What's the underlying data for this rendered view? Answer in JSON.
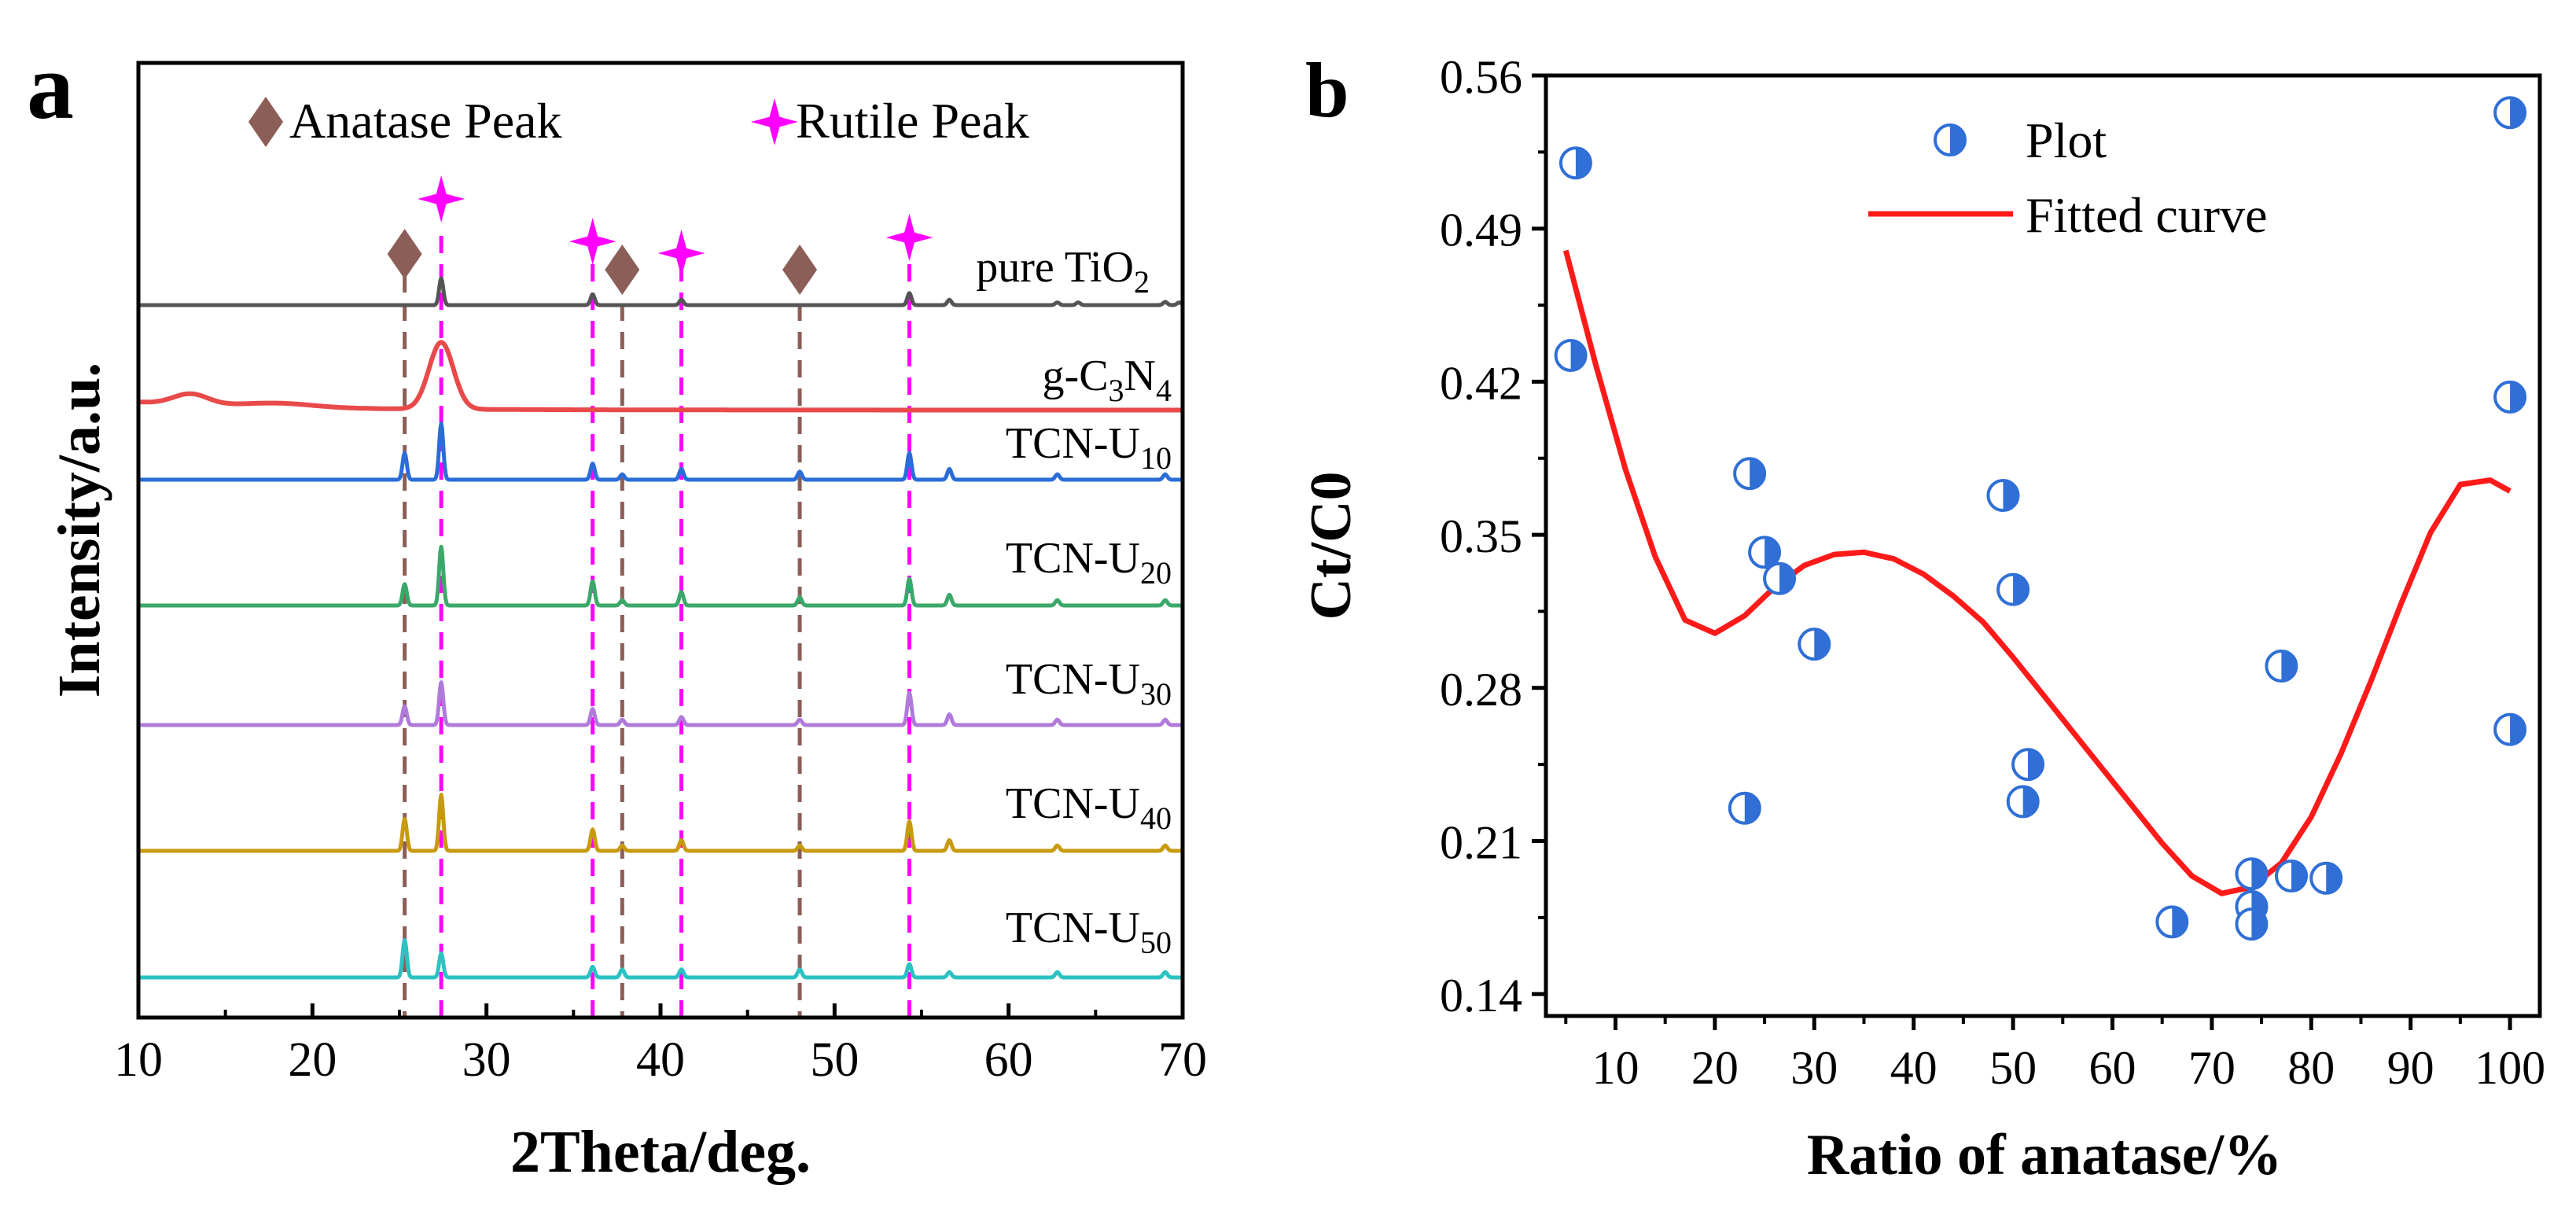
{
  "panel_a": {
    "label": "a",
    "legend": {
      "anatase": "Anatase Peak",
      "rutile": "Rutile Peak"
    },
    "colors": {
      "anatase_marker": "#8B5E57",
      "rutile_marker": "#FF00FF"
    },
    "samples": [
      {
        "prefix": "pure TiO",
        "sub": "2",
        "suffix": "",
        "color": "#555555"
      },
      {
        "prefix": "g-C",
        "sub": "3",
        "suffix": "N",
        "sub2": "4",
        "color": "#E84A4A"
      },
      {
        "prefix": "TCN-U",
        "sub": "10",
        "suffix": "",
        "color": "#2A6DD8"
      },
      {
        "prefix": "TCN-U",
        "sub": "20",
        "suffix": "",
        "color": "#3BA86A"
      },
      {
        "prefix": "TCN-U",
        "sub": "30",
        "suffix": "",
        "color": "#B07ADB"
      },
      {
        "prefix": "TCN-U",
        "sub": "40",
        "suffix": "",
        "color": "#C89A10"
      },
      {
        "prefix": "TCN-U",
        "sub": "50",
        "suffix": "",
        "color": "#2CC2C2"
      }
    ]
  },
  "panel_b": {
    "label": "b",
    "legend": {
      "plot": "Plot",
      "fit": "Fitted curve"
    },
    "colors": {
      "point": "#2F6FD6",
      "fit": "#FF1A1A"
    }
  },
  "chart_data": [
    {
      "type": "line",
      "title": "",
      "xlabel": "2Theta/deg.",
      "ylabel": "Intensity/a.u.",
      "xlim": [
        10,
        70
      ],
      "xticks": [
        10,
        20,
        30,
        40,
        50,
        60,
        70
      ],
      "anatase_peaks": [
        25.3,
        37.8,
        48.0
      ],
      "rutile_peaks": [
        27.4,
        36.1,
        41.2,
        54.3
      ],
      "series": [
        {
          "name": "pure TiO2",
          "peaks": [
            [
              27.4,
              1.0
            ],
            [
              36.1,
              0.4
            ],
            [
              41.2,
              0.2
            ],
            [
              54.3,
              0.45
            ],
            [
              56.6,
              0.2
            ],
            [
              62.8,
              0.1
            ],
            [
              64.0,
              0.1
            ],
            [
              69.0,
              0.12
            ],
            [
              69.8,
              0.1
            ]
          ]
        },
        {
          "name": "g-C3N4",
          "peaks": [
            [
              13.0,
              0.4
            ],
            [
              27.4,
              2.5
            ]
          ]
        },
        {
          "name": "TCN-U10",
          "peaks": [
            [
              25.3,
              1.0
            ],
            [
              27.4,
              2.1
            ],
            [
              36.1,
              0.6
            ],
            [
              37.8,
              0.2
            ],
            [
              41.2,
              0.4
            ],
            [
              48.0,
              0.3
            ],
            [
              54.3,
              1.0
            ],
            [
              56.6,
              0.4
            ],
            [
              62.8,
              0.2
            ],
            [
              69.0,
              0.2
            ]
          ]
        },
        {
          "name": "TCN-U20",
          "peaks": [
            [
              25.3,
              0.8
            ],
            [
              27.4,
              2.2
            ],
            [
              36.1,
              0.9
            ],
            [
              37.8,
              0.2
            ],
            [
              41.2,
              0.5
            ],
            [
              48.0,
              0.3
            ],
            [
              54.3,
              1.0
            ],
            [
              56.6,
              0.4
            ],
            [
              62.8,
              0.2
            ],
            [
              69.0,
              0.2
            ]
          ]
        },
        {
          "name": "TCN-U30",
          "peaks": [
            [
              25.3,
              0.7
            ],
            [
              27.4,
              1.6
            ],
            [
              36.1,
              0.6
            ],
            [
              37.8,
              0.2
            ],
            [
              41.2,
              0.3
            ],
            [
              48.0,
              0.2
            ],
            [
              54.3,
              1.2
            ],
            [
              56.6,
              0.4
            ],
            [
              62.8,
              0.2
            ],
            [
              69.0,
              0.2
            ]
          ]
        },
        {
          "name": "TCN-U40",
          "peaks": [
            [
              25.3,
              1.2
            ],
            [
              27.4,
              2.1
            ],
            [
              36.1,
              0.8
            ],
            [
              37.8,
              0.2
            ],
            [
              41.2,
              0.4
            ],
            [
              48.0,
              0.2
            ],
            [
              54.3,
              1.1
            ],
            [
              56.6,
              0.4
            ],
            [
              62.8,
              0.2
            ],
            [
              69.0,
              0.2
            ]
          ]
        },
        {
          "name": "TCN-U50",
          "peaks": [
            [
              25.3,
              1.4
            ],
            [
              27.4,
              0.9
            ],
            [
              36.1,
              0.4
            ],
            [
              37.8,
              0.3
            ],
            [
              41.2,
              0.3
            ],
            [
              48.0,
              0.3
            ],
            [
              54.3,
              0.5
            ],
            [
              56.6,
              0.2
            ],
            [
              62.8,
              0.2
            ],
            [
              69.0,
              0.2
            ]
          ]
        }
      ]
    },
    {
      "type": "scatter",
      "title": "",
      "xlabel": "Ratio of anatase/%",
      "ylabel": "Ct/C0",
      "xlim": [
        3,
        103
      ],
      "ylim": [
        0.13,
        0.56
      ],
      "xticks": [
        10,
        20,
        30,
        40,
        50,
        60,
        70,
        80,
        90,
        100
      ],
      "yticks": [
        0.14,
        0.21,
        0.28,
        0.35,
        0.42,
        0.49,
        0.56
      ],
      "points": [
        {
          "x": 6.0,
          "y": 0.52
        },
        {
          "x": 5.5,
          "y": 0.432
        },
        {
          "x": 23.5,
          "y": 0.378
        },
        {
          "x": 25.0,
          "y": 0.342
        },
        {
          "x": 26.5,
          "y": 0.33
        },
        {
          "x": 30.0,
          "y": 0.3
        },
        {
          "x": 23.0,
          "y": 0.225
        },
        {
          "x": 49.0,
          "y": 0.368
        },
        {
          "x": 50.0,
          "y": 0.325
        },
        {
          "x": 51.5,
          "y": 0.245
        },
        {
          "x": 51.0,
          "y": 0.228
        },
        {
          "x": 66.0,
          "y": 0.173
        },
        {
          "x": 74.0,
          "y": 0.195
        },
        {
          "x": 74.0,
          "y": 0.18
        },
        {
          "x": 74.0,
          "y": 0.172
        },
        {
          "x": 77.0,
          "y": 0.29
        },
        {
          "x": 78.0,
          "y": 0.194
        },
        {
          "x": 81.5,
          "y": 0.193
        },
        {
          "x": 100.0,
          "y": 0.543
        },
        {
          "x": 100.0,
          "y": 0.413
        },
        {
          "x": 100.0,
          "y": 0.261
        }
      ],
      "fit_curve": {
        "x": [
          5,
          8,
          11,
          14,
          17,
          20,
          23,
          26,
          29,
          32,
          35,
          38,
          41,
          44,
          47,
          50,
          53,
          56,
          59,
          62,
          65,
          68,
          71,
          74,
          77,
          80,
          83,
          86,
          89,
          92,
          95,
          98,
          100
        ],
        "y": [
          0.48,
          0.428,
          0.38,
          0.34,
          0.311,
          0.305,
          0.313,
          0.326,
          0.336,
          0.341,
          0.342,
          0.339,
          0.332,
          0.322,
          0.31,
          0.294,
          0.277,
          0.26,
          0.243,
          0.226,
          0.209,
          0.194,
          0.186,
          0.189,
          0.2,
          0.221,
          0.25,
          0.283,
          0.318,
          0.351,
          0.373,
          0.375,
          0.37
        ]
      }
    }
  ]
}
